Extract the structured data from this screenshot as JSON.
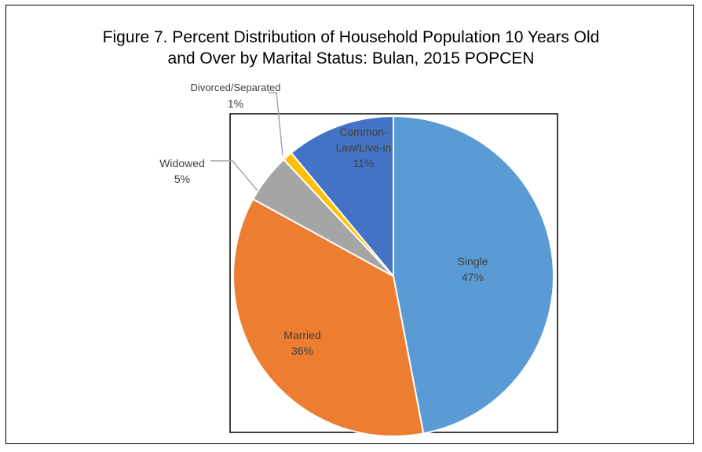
{
  "chart_data": {
    "type": "pie",
    "title": "Figure 7. Percent Distribution of Household Population 10 Years Old and Over by Marital Status: Bulan, 2015 POPCEN",
    "categories": [
      "Single",
      "Married",
      "Widowed",
      "Divorced/Separated",
      "Common-Law/Live-in"
    ],
    "values": [
      47,
      36,
      5,
      1,
      11
    ],
    "value_labels": [
      "47%",
      "36%",
      "5%",
      "1%",
      "11%"
    ],
    "colors": [
      "#5b9bd5",
      "#ed7d31",
      "#a5a5a5",
      "#ffc000",
      "#4472c4"
    ]
  }
}
